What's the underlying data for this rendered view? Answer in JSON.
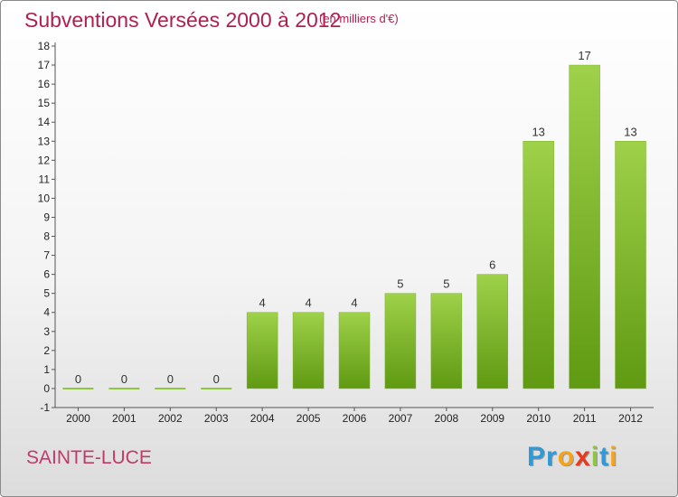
{
  "header": {
    "title": "Subventions Versées 2000 à 2012",
    "subtitle": "(en milliers d'€)"
  },
  "footer": {
    "commune": "SAINTE-LUCE",
    "logo_letters": [
      {
        "char": "P",
        "color": "#2e9ad8"
      },
      {
        "char": "r",
        "color": "#2e9ad8"
      },
      {
        "char": "o",
        "color": "#f5a31a"
      },
      {
        "char": "x",
        "color": "#e8381f"
      },
      {
        "char": "i",
        "color": "#8dc63f"
      },
      {
        "char": "t",
        "color": "#2e9ad8"
      },
      {
        "char": "i",
        "color": "#f5a31a"
      }
    ]
  },
  "colors": {
    "bar_light": "#9fd14a",
    "bar_dark": "#5f9a12",
    "zero_line": "#8dc63f",
    "axis": "#555555",
    "title": "#b0204f"
  },
  "chart_data": {
    "type": "bar",
    "categories": [
      "2000",
      "2001",
      "2002",
      "2003",
      "2004",
      "2005",
      "2006",
      "2007",
      "2008",
      "2009",
      "2010",
      "2011",
      "2012"
    ],
    "values": [
      0,
      0,
      0,
      0,
      4,
      4,
      4,
      5,
      5,
      6,
      13,
      17,
      13
    ],
    "ylim": [
      -1,
      18
    ],
    "yticks": [
      -1,
      0,
      1,
      2,
      3,
      4,
      5,
      6,
      7,
      8,
      9,
      10,
      11,
      12,
      13,
      14,
      15,
      16,
      17,
      18
    ],
    "grid": false,
    "legend": "none"
  }
}
